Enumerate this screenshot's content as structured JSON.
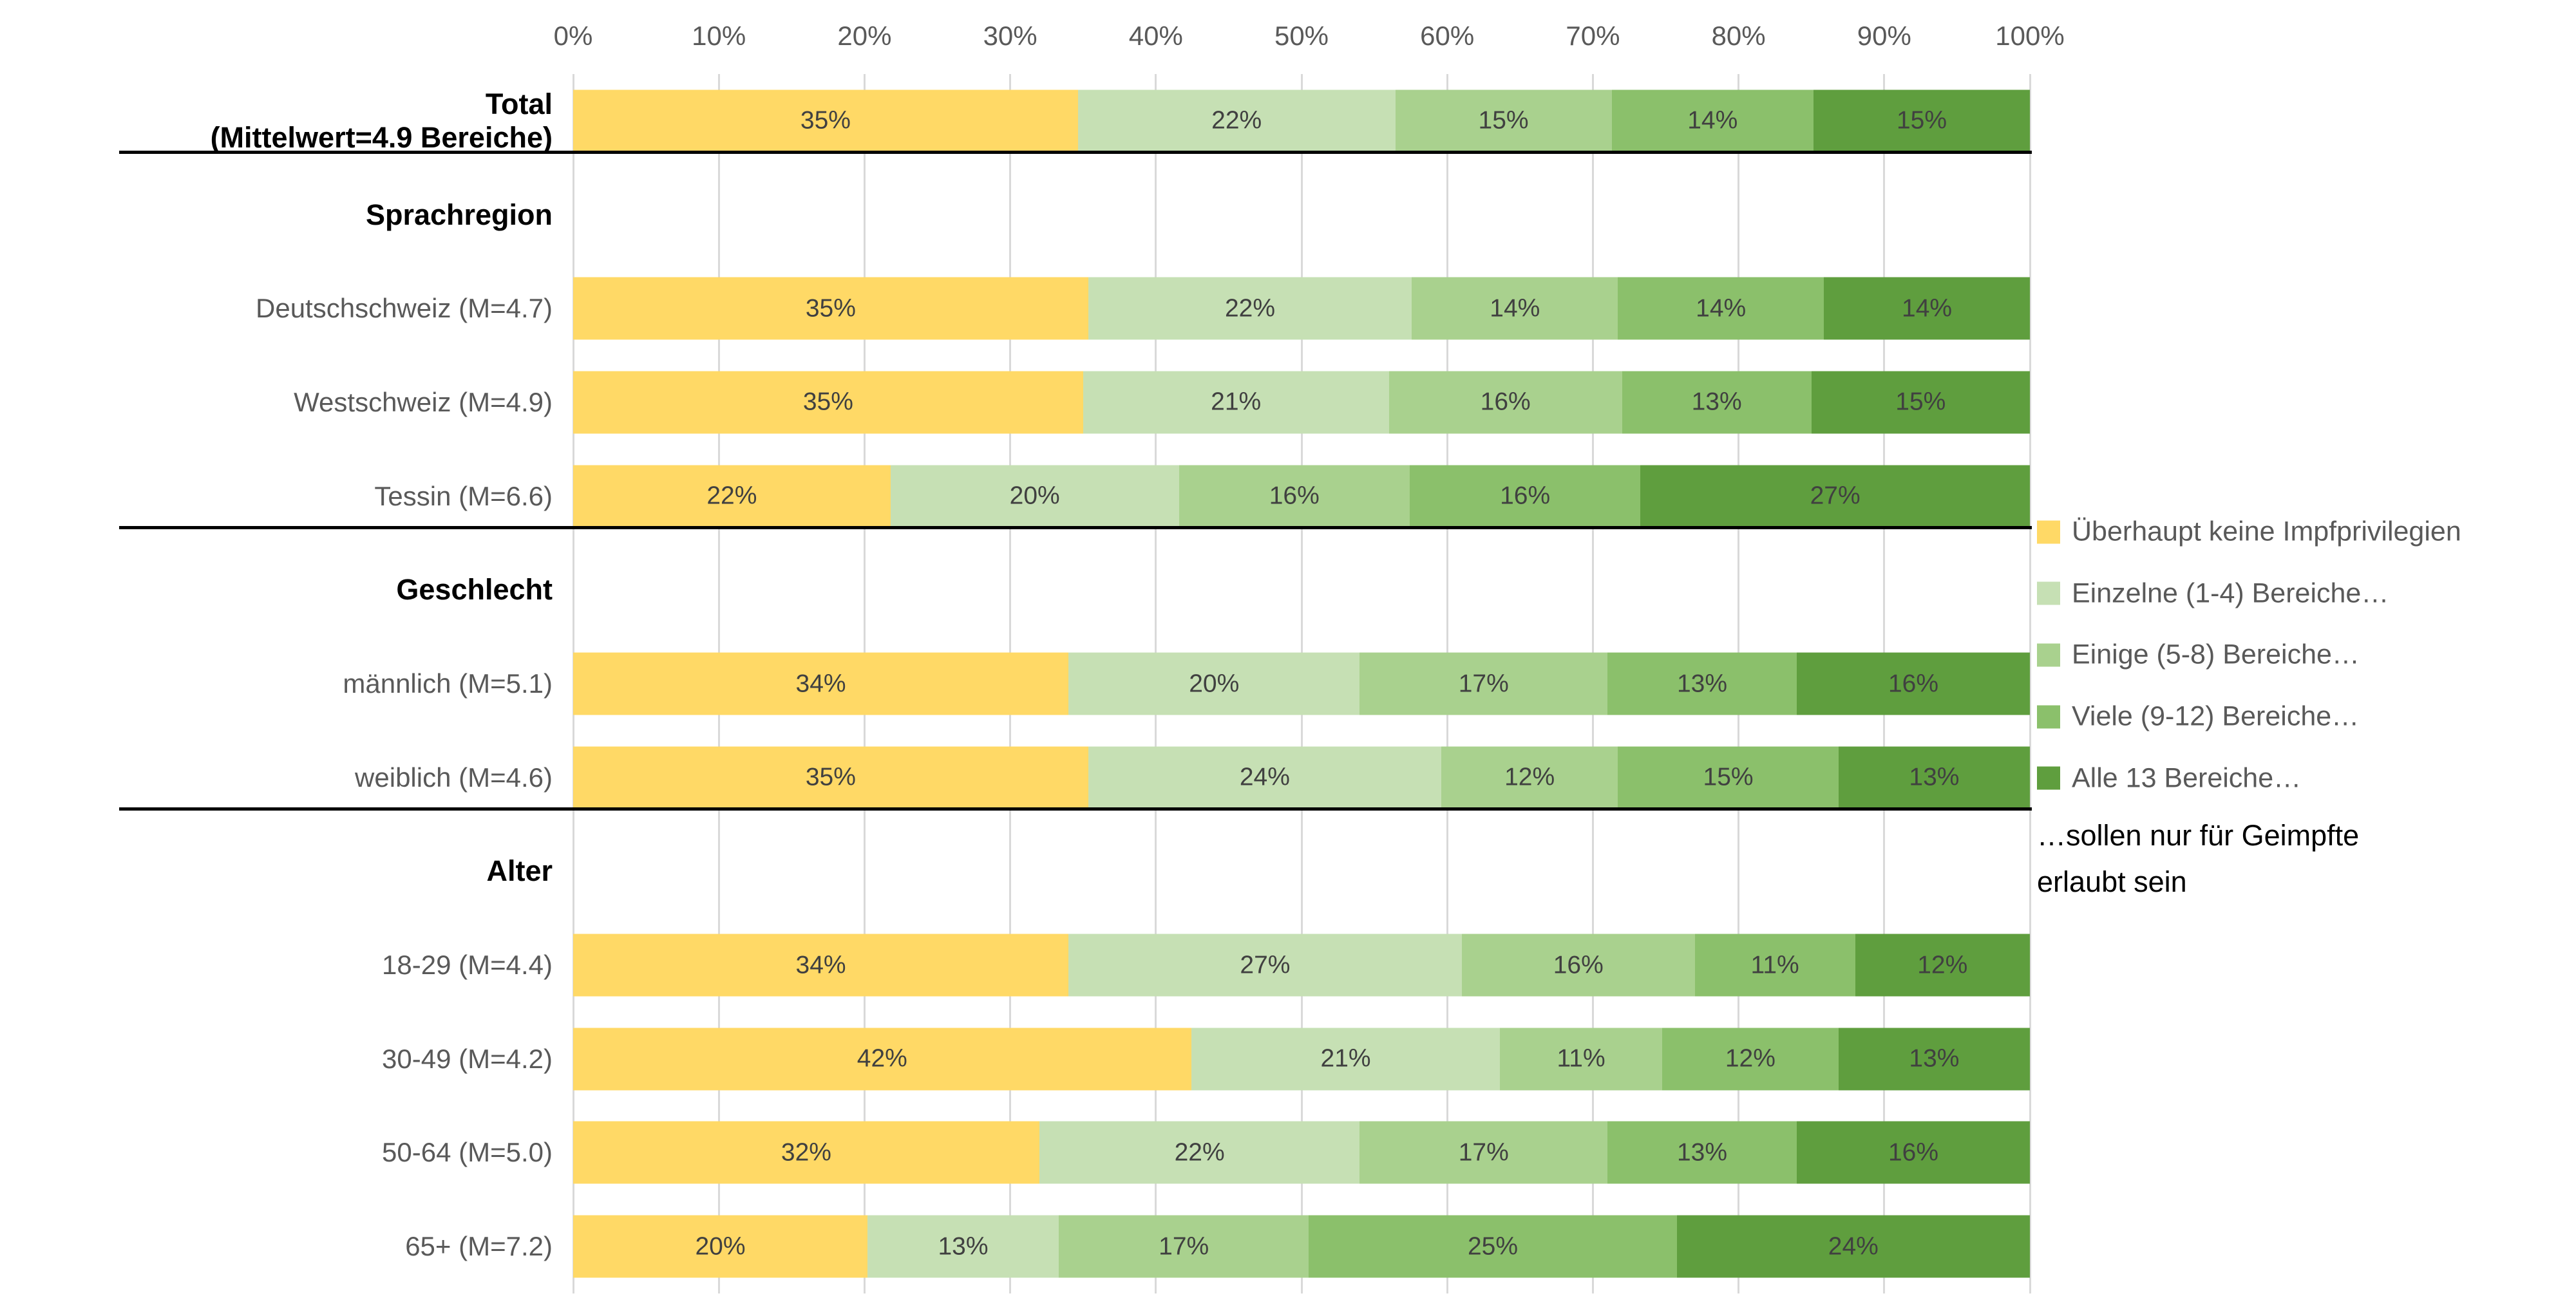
{
  "chart_data": {
    "type": "bar",
    "variant": "horizontal-stacked-100",
    "grid": true,
    "xlim": [
      0,
      100
    ],
    "x_ticks": [
      "0%",
      "10%",
      "20%",
      "30%",
      "40%",
      "50%",
      "60%",
      "70%",
      "80%",
      "90%",
      "100%"
    ],
    "series_names": [
      "Überhaupt keine Impfprivilegien",
      "Einzelne (1-4) Bereiche…",
      "Einige (5-8) Bereiche…",
      "Viele (9-12) Bereiche…",
      "Alle 13 Bereiche…"
    ],
    "series_colors": [
      "#FFD966",
      "#C6E0B4",
      "#A9D18E",
      "#8BC06B",
      "#5F9E3E"
    ],
    "rows": [
      {
        "kind": "bar",
        "label_line1": "Total",
        "label_line2": "(Mittelwert=4.9 Bereiche)",
        "bold": true,
        "values": [
          35,
          22,
          15,
          14,
          15
        ],
        "separator_below": true
      },
      {
        "kind": "header",
        "label": "Sprachregion"
      },
      {
        "kind": "bar",
        "label": "Deutschschweiz (M=4.7)",
        "values": [
          35,
          22,
          14,
          14,
          14
        ]
      },
      {
        "kind": "bar",
        "label": "Westschweiz (M=4.9)",
        "values": [
          35,
          21,
          16,
          13,
          15
        ]
      },
      {
        "kind": "bar",
        "label": "Tessin (M=6.6)",
        "values": [
          22,
          20,
          16,
          16,
          27
        ],
        "separator_below": true
      },
      {
        "kind": "header",
        "label": "Geschlecht"
      },
      {
        "kind": "bar",
        "label": "männlich (M=5.1)",
        "values": [
          34,
          20,
          17,
          13,
          16
        ]
      },
      {
        "kind": "bar",
        "label": "weiblich (M=4.6)",
        "values": [
          35,
          24,
          12,
          15,
          13
        ],
        "separator_below": true
      },
      {
        "kind": "header",
        "label": "Alter"
      },
      {
        "kind": "bar",
        "label": "18-29 (M=4.4)",
        "values": [
          34,
          27,
          16,
          11,
          12
        ]
      },
      {
        "kind": "bar",
        "label": "30-49 (M=4.2)",
        "values": [
          42,
          21,
          11,
          12,
          13
        ]
      },
      {
        "kind": "bar",
        "label": "50-64 (M=5.0)",
        "values": [
          32,
          22,
          17,
          13,
          16
        ]
      },
      {
        "kind": "bar",
        "label": "65+ (M=7.2)",
        "values": [
          20,
          13,
          17,
          25,
          24
        ]
      }
    ],
    "value_suffix": "%"
  },
  "legend": {
    "items": [
      {
        "label": "Überhaupt keine Impfprivilegien",
        "color": "#FFD966"
      },
      {
        "label": "Einzelne (1-4) Bereiche…",
        "color": "#C6E0B4"
      },
      {
        "label": "Einige (5-8) Bereiche…",
        "color": "#A9D18E"
      },
      {
        "label": "Viele (9-12) Bereiche…",
        "color": "#8BC06B"
      },
      {
        "label": "Alle 13 Bereiche…",
        "color": "#5F9E3E"
      }
    ],
    "note_line1": "…sollen nur für Geimpfte",
    "note_line2": "erlaubt sein"
  },
  "colors": {
    "gridline": "#d9d9d9",
    "axis_text": "#595959",
    "category_text": "#595959",
    "header_text": "#000000",
    "data_label_text": "#404040",
    "separator": "#000000",
    "background": "#ffffff"
  }
}
